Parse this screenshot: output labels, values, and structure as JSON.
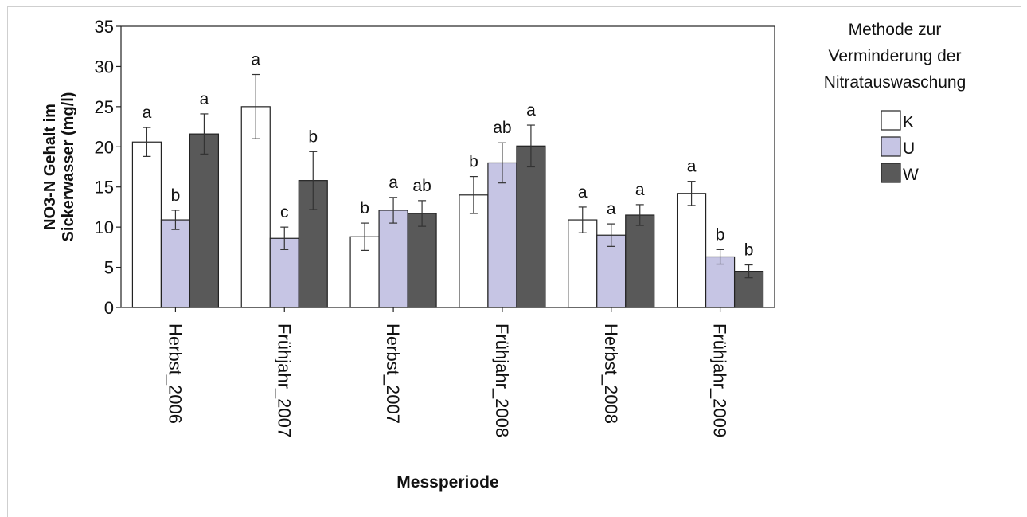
{
  "chart_data": {
    "type": "bar",
    "xlabel": "Messperiode",
    "ylabel": [
      "NO3-N Gehalt im",
      "Sickerwasser (mg/l)"
    ],
    "ylim": [
      0,
      35
    ],
    "yticks": [
      0,
      5,
      10,
      15,
      20,
      25,
      30,
      35
    ],
    "categories": [
      "Herbst_2006",
      "Frühjahr_2007",
      "Herbst_2007",
      "Frühjahr_2008",
      "Herbst_2008",
      "Frühjahr_2009"
    ],
    "legend": {
      "title": [
        "Methode zur",
        "Verminderung der",
        "Nitratauswaschung"
      ],
      "placement": "right"
    },
    "series": [
      {
        "name": "K",
        "color": "#ffffff",
        "values": [
          20.6,
          25.0,
          8.8,
          14.0,
          10.9,
          14.2
        ],
        "errors": [
          1.8,
          4.0,
          1.7,
          2.3,
          1.6,
          1.5
        ],
        "letters": [
          "a",
          "a",
          "b",
          "b",
          "a",
          "a"
        ]
      },
      {
        "name": "U",
        "color": "#c6c5e4",
        "values": [
          10.9,
          8.6,
          12.1,
          18.0,
          9.0,
          6.3
        ],
        "errors": [
          1.2,
          1.4,
          1.6,
          2.5,
          1.4,
          0.9
        ],
        "letters": [
          "b",
          "c",
          "a",
          "ab",
          "a",
          "b"
        ]
      },
      {
        "name": "W",
        "color": "#595959",
        "values": [
          21.6,
          15.8,
          11.7,
          20.1,
          11.5,
          4.5
        ],
        "errors": [
          2.5,
          3.6,
          1.6,
          2.6,
          1.3,
          0.8
        ],
        "letters": [
          "a",
          "b",
          "ab",
          "a",
          "a",
          "b"
        ]
      }
    ]
  }
}
